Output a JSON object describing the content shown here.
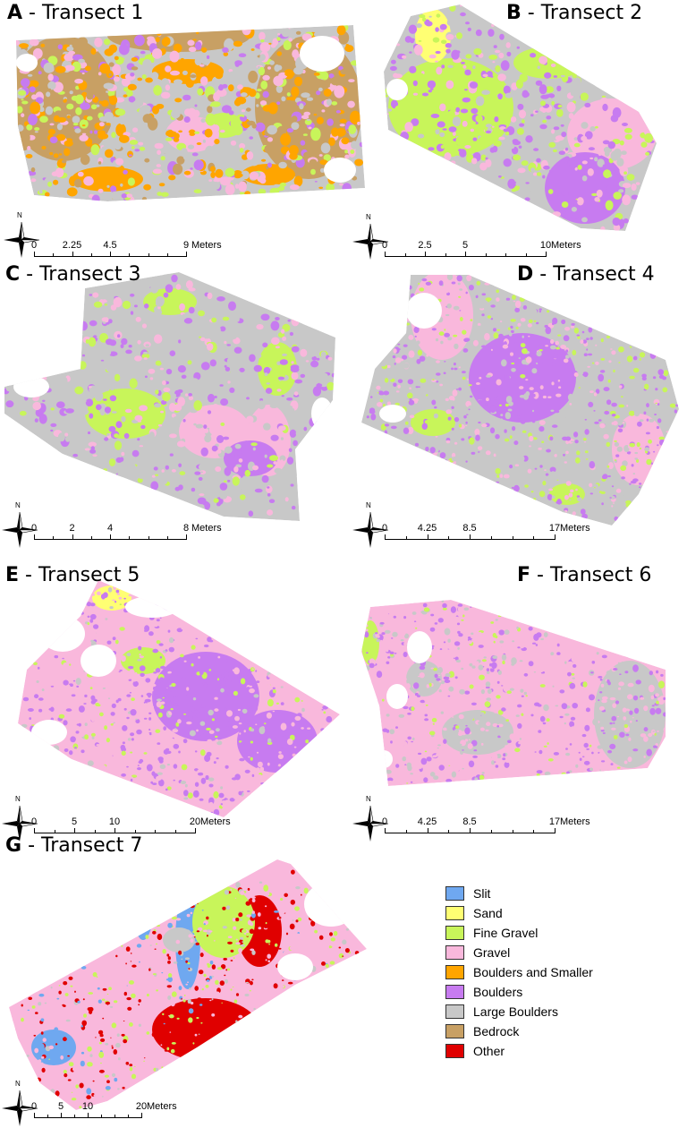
{
  "panels": [
    {
      "letter": "A",
      "title": "- Transect 1",
      "scale": {
        "labels": [
          "0",
          "2.25",
          "4.5",
          "9"
        ],
        "unit": "Meters"
      }
    },
    {
      "letter": "B",
      "title": "- Transect 2",
      "scale": {
        "labels": [
          "0",
          "2.5",
          "5",
          "10"
        ],
        "unit": "Meters"
      }
    },
    {
      "letter": "C",
      "title": "- Transect 3",
      "scale": {
        "labels": [
          "0",
          "2",
          "4",
          "8"
        ],
        "unit": "Meters"
      }
    },
    {
      "letter": "D",
      "title": "- Transect 4",
      "scale": {
        "labels": [
          "0",
          "4.25",
          "8.5",
          "17"
        ],
        "unit": "Meters"
      }
    },
    {
      "letter": "E",
      "title": "- Transect 5",
      "scale": {
        "labels": [
          "0",
          "5",
          "10",
          "20"
        ],
        "unit": "Meters"
      }
    },
    {
      "letter": "F",
      "title": "- Transect 6",
      "scale": {
        "labels": [
          "0",
          "4.25",
          "8.5",
          "17"
        ],
        "unit": "Meters"
      }
    },
    {
      "letter": "G",
      "title": "- Transect 7",
      "scale": {
        "labels": [
          "0",
          "5",
          "10",
          "20"
        ],
        "unit": "Meters"
      }
    }
  ],
  "north_label": "N",
  "legend": [
    {
      "label": "Slit",
      "color": "#6fa8f0"
    },
    {
      "label": "Sand",
      "color": "#ffff73"
    },
    {
      "label": "Fine Gravel",
      "color": "#c8f55a"
    },
    {
      "label": "Gravel",
      "color": "#f9b8dc"
    },
    {
      "label": "Boulders and Smaller",
      "color": "#ffa500"
    },
    {
      "label": "Boulders",
      "color": "#c77bf0"
    },
    {
      "label": "Large Boulders",
      "color": "#c8c8c8"
    },
    {
      "label": "Bedrock",
      "color": "#c8a064"
    },
    {
      "label": "Other",
      "color": "#e00000"
    }
  ]
}
